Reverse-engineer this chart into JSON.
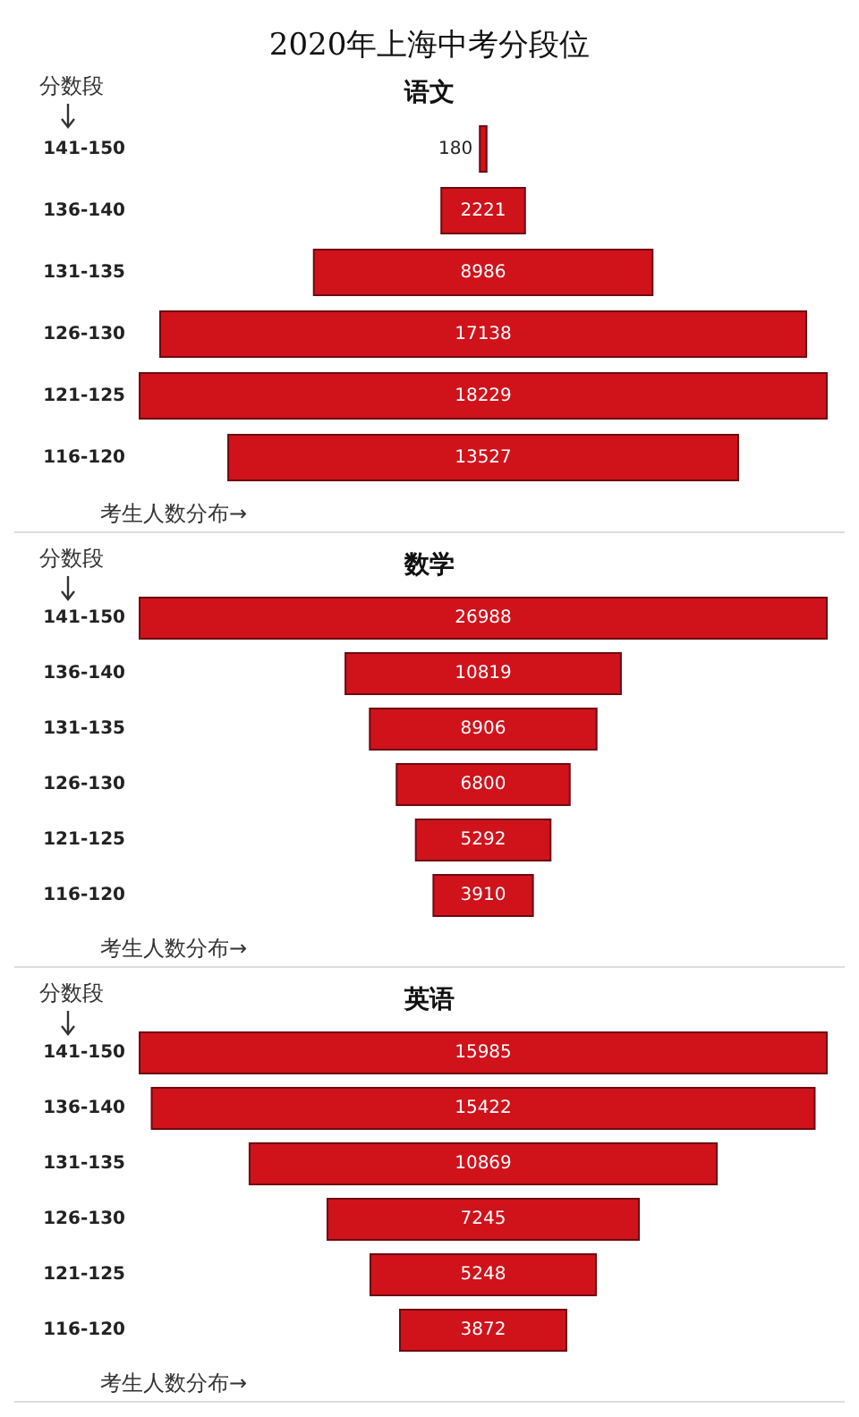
{
  "chart_data": [
    {
      "type": "other",
      "title": "2020年上海中考分段位",
      "subtitle": "语文",
      "ylabel": "分数段",
      "xlabel": "考生人数分布→",
      "categories": [
        "141-150",
        "136-140",
        "131-135",
        "126-130",
        "121-125",
        "116-120"
      ],
      "values": [
        180,
        2221,
        8986,
        17138,
        18229,
        13527
      ],
      "color": "#d0121b",
      "data_labels": true
    },
    {
      "type": "other",
      "title": "数学",
      "ylabel": "分数段",
      "xlabel": "考生人数分布→",
      "categories": [
        "141-150",
        "136-140",
        "131-135",
        "126-130",
        "121-125",
        "116-120"
      ],
      "values": [
        26988,
        10819,
        8906,
        6800,
        5292,
        3910
      ],
      "color": "#d0121b",
      "data_labels": true
    },
    {
      "type": "other",
      "title": "英语",
      "ylabel": "分数段",
      "xlabel": "考生人数分布→",
      "categories": [
        "141-150",
        "136-140",
        "131-135",
        "126-130",
        "121-125",
        "116-120"
      ],
      "values": [
        15985,
        15422,
        10869,
        7245,
        5248,
        3872
      ],
      "color": "#d0121b",
      "data_labels": true
    }
  ]
}
